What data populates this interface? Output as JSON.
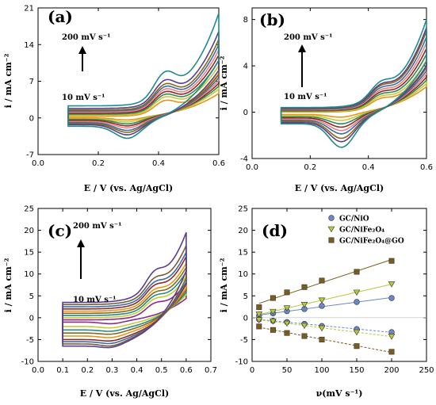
{
  "chart_data": [
    {
      "id": "a",
      "type": "line",
      "panel_label": "(a)",
      "xlabel": "E / V (vs. Ag/AgCl)",
      "ylabel": "i / mA cm⁻²",
      "xlim": [
        0.0,
        0.6
      ],
      "ylim": [
        -7,
        21
      ],
      "xticks": [
        0.0,
        0.2,
        0.4,
        0.6
      ],
      "xtick_labels": [
        "0.0",
        "0.2",
        "0.4",
        "0.6"
      ],
      "yticks": [
        -7,
        0,
        7,
        14,
        21
      ],
      "ytick_labels": [
        "-7",
        "0",
        "7",
        "14",
        "21"
      ],
      "annotation_top": "200 mV s⁻¹",
      "annotation_bottom": "10 mV s⁻¹",
      "series_colors": [
        "#e8931a",
        "#c9c935",
        "#2e8b57",
        "#8b2a2a",
        "#f08080",
        "#3a6ea5",
        "#8b6914",
        "#5a3e8c",
        "#228b8b"
      ],
      "curve": {
        "E_start": 0.1,
        "E_end": 0.6,
        "k": 0.9,
        "peak_E": 0.42,
        "peak_h": 0.25,
        "cath_E": 0.3,
        "cath_h": 0.3
      },
      "series": [
        {
          "scan_rate_mV_s": 10,
          "i_max": 8.5,
          "i_start_anodic": 0.3,
          "i_start_cathodic": 0.0,
          "i_cathodic_min": -0.5
        },
        {
          "scan_rate_mV_s": 20,
          "i_max": 10.0,
          "i_start_anodic": 0.5,
          "i_start_cathodic": -0.2,
          "i_cathodic_min": -0.9
        },
        {
          "scan_rate_mV_s": 30,
          "i_max": 11.0,
          "i_start_anodic": 0.7,
          "i_start_cathodic": -0.3,
          "i_cathodic_min": -1.3
        },
        {
          "scan_rate_mV_s": 50,
          "i_max": 12.0,
          "i_start_anodic": 0.9,
          "i_start_cathodic": -0.5,
          "i_cathodic_min": -1.7
        },
        {
          "scan_rate_mV_s": 75,
          "i_max": 13.0,
          "i_start_anodic": 1.1,
          "i_start_cathodic": -0.7,
          "i_cathodic_min": -2.1
        },
        {
          "scan_rate_mV_s": 100,
          "i_max": 14.0,
          "i_start_anodic": 1.3,
          "i_start_cathodic": -0.9,
          "i_cathodic_min": -2.6
        },
        {
          "scan_rate_mV_s": 125,
          "i_max": 15.0,
          "i_start_anodic": 1.5,
          "i_start_cathodic": -1.1,
          "i_cathodic_min": -3.0
        },
        {
          "scan_rate_mV_s": 150,
          "i_max": 16.5,
          "i_start_anodic": 1.8,
          "i_start_cathodic": -1.3,
          "i_cathodic_min": -3.5
        },
        {
          "scan_rate_mV_s": 200,
          "i_max": 20.0,
          "i_start_anodic": 2.3,
          "i_start_cathodic": -1.6,
          "i_cathodic_min": -4.2
        }
      ]
    },
    {
      "id": "b",
      "type": "line",
      "panel_label": "(b)",
      "xlabel": "E / V (vs. Ag/AgCl)",
      "ylabel": "i / mA cm⁻²",
      "xlim": [
        0.0,
        0.6
      ],
      "ylim": [
        -4,
        9
      ],
      "xticks": [
        0.0,
        0.2,
        0.4,
        0.6
      ],
      "xtick_labels": [
        "0.0",
        "0.2",
        "0.4",
        "0.6"
      ],
      "yticks": [
        -4,
        0,
        4,
        8
      ],
      "ytick_labels": [
        "-4",
        "0",
        "4",
        "8"
      ],
      "annotation_top": "200 mV s⁻¹",
      "annotation_bottom": "10 mV s⁻¹",
      "series_colors": [
        "#e8931a",
        "#c9c935",
        "#2e8b57",
        "#8b2a2a",
        "#f08080",
        "#3a6ea5",
        "#8b6914",
        "#5a3e8c",
        "#228b8b"
      ],
      "curve": {
        "E_start": 0.1,
        "E_end": 0.6,
        "k": 1.0,
        "peak_E": 0.44,
        "peak_h": 0.15,
        "cath_E": 0.31,
        "cath_h": 0.35
      },
      "series": [
        {
          "scan_rate_mV_s": 10,
          "i_max": 4.0,
          "i_start_anodic": 0.0,
          "i_start_cathodic": -0.2,
          "i_cathodic_min": -0.5
        },
        {
          "scan_rate_mV_s": 20,
          "i_max": 4.5,
          "i_start_anodic": 0.05,
          "i_start_cathodic": -0.3,
          "i_cathodic_min": -0.8
        },
        {
          "scan_rate_mV_s": 30,
          "i_max": 5.0,
          "i_start_anodic": 0.1,
          "i_start_cathodic": -0.4,
          "i_cathodic_min": -1.1
        },
        {
          "scan_rate_mV_s": 50,
          "i_max": 5.5,
          "i_start_anodic": 0.15,
          "i_start_cathodic": -0.5,
          "i_cathodic_min": -1.4
        },
        {
          "scan_rate_mV_s": 75,
          "i_max": 6.0,
          "i_start_anodic": 0.2,
          "i_start_cathodic": -0.6,
          "i_cathodic_min": -1.7
        },
        {
          "scan_rate_mV_s": 100,
          "i_max": 6.5,
          "i_start_anodic": 0.25,
          "i_start_cathodic": -0.7,
          "i_cathodic_min": -2.0
        },
        {
          "scan_rate_mV_s": 125,
          "i_max": 7.0,
          "i_start_anodic": 0.3,
          "i_start_cathodic": -0.8,
          "i_cathodic_min": -2.4
        },
        {
          "scan_rate_mV_s": 150,
          "i_max": 7.3,
          "i_start_anodic": 0.35,
          "i_start_cathodic": -0.9,
          "i_cathodic_min": -2.7
        },
        {
          "scan_rate_mV_s": 200,
          "i_max": 8.0,
          "i_start_anodic": 0.4,
          "i_start_cathodic": -1.0,
          "i_cathodic_min": -3.2
        }
      ]
    },
    {
      "id": "c",
      "type": "line",
      "panel_label": "(c)",
      "xlabel": "E / V (vs. Ag/AgCl)",
      "ylabel": "i / mA cm⁻²",
      "xlim": [
        0.0,
        0.7
      ],
      "ylim": [
        -10,
        25
      ],
      "xticks": [
        0.0,
        0.1,
        0.2,
        0.3,
        0.4,
        0.5,
        0.6,
        0.7
      ],
      "xtick_labels": [
        "0.0",
        "0.1",
        "0.2",
        "0.3",
        "0.4",
        "0.5",
        "0.6",
        "0.7"
      ],
      "yticks": [
        -10,
        -5,
        0,
        5,
        10,
        15,
        20,
        25
      ],
      "ytick_labels": [
        "-10",
        "-5",
        "0",
        "5",
        "10",
        "15",
        "20",
        "25"
      ],
      "annotation_top": "200 mV s⁻¹",
      "annotation_bottom": "10 mV s⁻¹",
      "series_colors": [
        "#8b2a8b",
        "#c9c935",
        "#228b8b",
        "#8b6914",
        "#e8931a",
        "#8b2a2a",
        "#3a6ea5",
        "#7a5c3a",
        "#5a3e8c"
      ],
      "curve": {
        "E_start": 0.1,
        "E_end": 0.6,
        "k": 0.8,
        "peak_E": 0.47,
        "peak_h": 0.2,
        "cath_E": 0.3,
        "cath_h": 0.3
      },
      "series": [
        {
          "scan_rate_mV_s": 10,
          "i_max": 8.0,
          "i_start_anodic": -0.5,
          "i_start_cathodic": -1.0,
          "i_cathodic_min": -1.5
        },
        {
          "scan_rate_mV_s": 20,
          "i_max": 9.5,
          "i_start_anodic": 0.0,
          "i_start_cathodic": -2.0,
          "i_cathodic_min": -2.5
        },
        {
          "scan_rate_mV_s": 30,
          "i_max": 10.5,
          "i_start_anodic": 0.5,
          "i_start_cathodic": -2.8,
          "i_cathodic_min": -3.3
        },
        {
          "scan_rate_mV_s": 50,
          "i_max": 11.5,
          "i_start_anodic": 1.0,
          "i_start_cathodic": -3.5,
          "i_cathodic_min": -4.0
        },
        {
          "scan_rate_mV_s": 75,
          "i_max": 12.5,
          "i_start_anodic": 1.5,
          "i_start_cathodic": -4.2,
          "i_cathodic_min": -4.8
        },
        {
          "scan_rate_mV_s": 100,
          "i_max": 14.0,
          "i_start_anodic": 2.0,
          "i_start_cathodic": -5.0,
          "i_cathodic_min": -5.6
        },
        {
          "scan_rate_mV_s": 125,
          "i_max": 15.0,
          "i_start_anodic": 2.5,
          "i_start_cathodic": -5.5,
          "i_cathodic_min": -6.2
        },
        {
          "scan_rate_mV_s": 150,
          "i_max": 16.5,
          "i_start_anodic": 3.0,
          "i_start_cathodic": -6.0,
          "i_cathodic_min": -6.8
        },
        {
          "scan_rate_mV_s": 200,
          "i_max": 19.5,
          "i_start_anodic": 3.5,
          "i_start_cathodic": -6.5,
          "i_cathodic_min": -7.2
        }
      ]
    },
    {
      "id": "d",
      "type": "scatter",
      "panel_label": "(d)",
      "xlabel": "ν(mV s⁻¹)",
      "ylabel": "i / mA cm⁻²",
      "xlim": [
        0,
        250
      ],
      "ylim": [
        -10,
        25
      ],
      "xticks": [
        0,
        50,
        100,
        150,
        200,
        250
      ],
      "xtick_labels": [
        "0",
        "50",
        "100",
        "150",
        "200",
        "250"
      ],
      "yticks": [
        -10,
        -5,
        0,
        5,
        10,
        15,
        20,
        25
      ],
      "ytick_labels": [
        "-10",
        "-5",
        "0",
        "5",
        "10",
        "15",
        "20",
        "25"
      ],
      "x": [
        10,
        30,
        50,
        75,
        100,
        150,
        200
      ],
      "legend_position": "top-right",
      "series": [
        {
          "name": "GC/NiO",
          "marker": "circle",
          "color": "#6a87c8",
          "anodic": [
            0.5,
            1.0,
            1.5,
            2.0,
            2.7,
            3.6,
            4.5
          ],
          "cathodic": [
            -0.4,
            -0.7,
            -1.0,
            -1.4,
            -1.9,
            -2.6,
            -3.3
          ]
        },
        {
          "name": "GC/NiFe₂O₄",
          "marker": "triangle-down",
          "color": "#b8c83a",
          "anodic": [
            0.8,
            1.4,
            2.2,
            3.0,
            4.0,
            5.8,
            7.7
          ],
          "cathodic": [
            -0.5,
            -0.8,
            -1.3,
            -1.8,
            -2.4,
            -3.3,
            -4.3
          ]
        },
        {
          "name": "GC/NiFe₂O₄@GO",
          "marker": "square",
          "color": "#7a5c1e",
          "anodic": [
            2.4,
            4.5,
            5.8,
            7.0,
            8.5,
            10.5,
            13.0
          ],
          "cathodic": [
            -2.0,
            -2.8,
            -3.5,
            -4.2,
            -5.0,
            -6.5,
            -7.8
          ]
        }
      ]
    }
  ]
}
